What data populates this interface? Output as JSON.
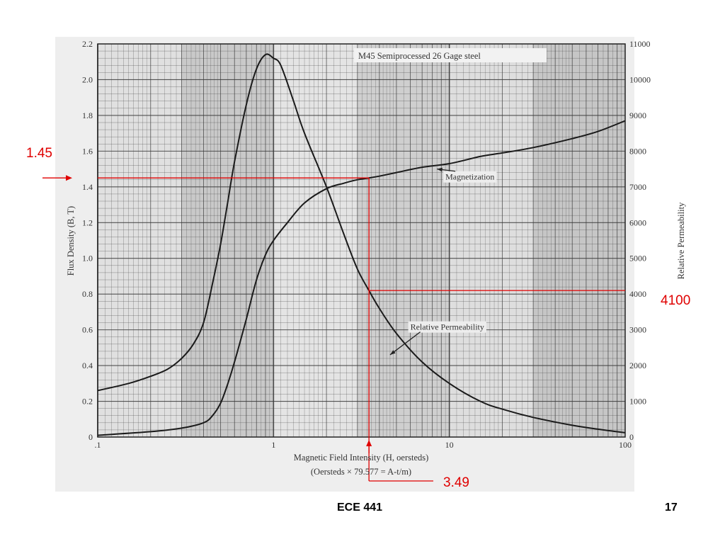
{
  "slide": {
    "footer_course": "ECE 441",
    "page_number": "17"
  },
  "chart_data": {
    "type": "line",
    "title": "M45 Semiprocessed 26 Gage steel",
    "xlabel": "Magnetic Field Intensity (H, oersteds)",
    "xlabel_note": "(Oersteds × 79.577 = A-t/m)",
    "ylabel_left": "Flux Density (B, T)",
    "ylabel_right": "Relative Permeability",
    "x_scale": "log",
    "xlim": [
      0.1,
      100
    ],
    "ylim_left": [
      0,
      2.2
    ],
    "ylim_right": [
      0,
      11000
    ],
    "x_ticks": [
      0.1,
      1,
      10,
      100
    ],
    "x_tick_labels": [
      ".1",
      "1",
      "10",
      "100"
    ],
    "y_left_ticks": [
      0,
      0.2,
      0.4,
      0.6,
      0.8,
      1.0,
      1.2,
      1.4,
      1.6,
      1.8,
      2.0,
      2.2
    ],
    "y_left_tick_labels": [
      "0",
      "0.2",
      "0.4",
      "0.6",
      "0.8",
      "1.0",
      "1.2",
      "1.4",
      "1.6",
      "1.8",
      "2.0",
      "2.2"
    ],
    "y_right_ticks": [
      0,
      1000,
      2000,
      3000,
      4000,
      5000,
      6000,
      7000,
      8000,
      9000,
      10000,
      11000
    ],
    "y_right_tick_labels": [
      "0",
      "1000",
      "2000",
      "3000",
      "4000",
      "5000",
      "6000",
      "7000",
      "8000",
      "9000",
      "10000",
      "11000"
    ],
    "grid": true,
    "series": [
      {
        "name": "Magnetization",
        "axis": "left",
        "label_at": [
          9.5,
          1.44
        ],
        "arrow_to": [
          8.5,
          1.5
        ],
        "x": [
          0.1,
          0.2,
          0.3,
          0.4,
          0.45,
          0.5,
          0.55,
          0.6,
          0.7,
          0.8,
          0.9,
          1.0,
          1.2,
          1.5,
          2,
          2.5,
          3,
          3.49,
          4,
          5,
          7,
          10,
          15,
          20,
          30,
          50,
          70,
          100
        ],
        "y": [
          0.01,
          0.03,
          0.05,
          0.08,
          0.12,
          0.19,
          0.3,
          0.42,
          0.66,
          0.88,
          1.02,
          1.1,
          1.2,
          1.31,
          1.39,
          1.42,
          1.44,
          1.45,
          1.46,
          1.48,
          1.51,
          1.53,
          1.57,
          1.59,
          1.62,
          1.67,
          1.71,
          1.77
        ]
      },
      {
        "name": "Relative Permeability",
        "axis": "right",
        "label_at": [
          6,
          3000
        ],
        "arrow_to": [
          4.6,
          2300
        ],
        "x": [
          0.1,
          0.15,
          0.2,
          0.25,
          0.3,
          0.35,
          0.4,
          0.45,
          0.5,
          0.55,
          0.6,
          0.7,
          0.8,
          0.9,
          1.0,
          1.1,
          1.3,
          1.5,
          2,
          2.5,
          3,
          3.49,
          4,
          5,
          7,
          10,
          15,
          20,
          30,
          50,
          70,
          100
        ],
        "y": [
          1300,
          1500,
          1700,
          1900,
          2200,
          2600,
          3200,
          4300,
          5400,
          6600,
          7700,
          9300,
          10300,
          10700,
          10600,
          10400,
          9400,
          8500,
          7000,
          5700,
          4700,
          4100,
          3600,
          2900,
          2100,
          1500,
          1000,
          780,
          550,
          330,
          220,
          120
        ]
      }
    ],
    "annotations": [
      {
        "label": "1.45",
        "axis": "left",
        "value": 1.45
      },
      {
        "label": "3.49",
        "axis": "x",
        "value": 3.49
      },
      {
        "label": "4100",
        "axis": "right",
        "value": 4100
      }
    ],
    "annotation_color": "#e00000",
    "curve_color": "#1a1a1a",
    "grid_color": "#3a3a3a"
  }
}
